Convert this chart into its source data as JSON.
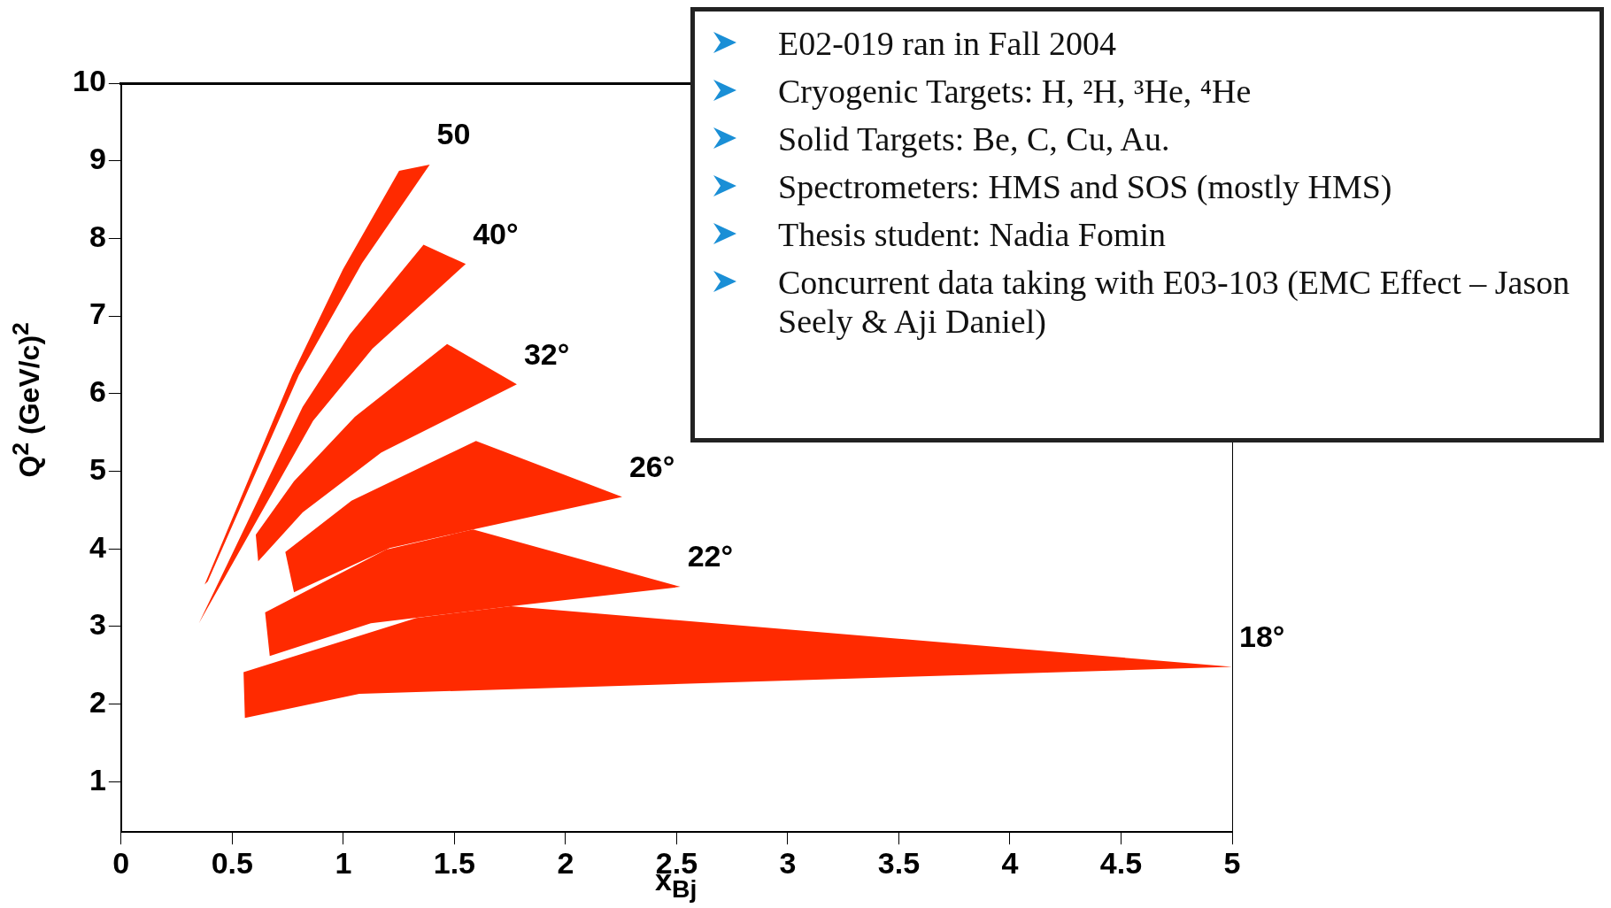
{
  "chart_data": {
    "type": "area",
    "xlabel": "x$_{Bj}$",
    "ylabel": "Q$^{2}$ (GeV/c)$^{2}$",
    "xlim": [
      0,
      5
    ],
    "xticks": [
      0,
      0.5,
      1,
      1.5,
      2,
      2.5,
      3,
      3.5,
      4,
      4.5,
      5
    ],
    "ylim": [
      0.35,
      10
    ],
    "yticks": [
      1,
      2,
      3,
      4,
      5,
      6,
      7,
      8,
      9,
      10
    ],
    "series": [
      {
        "name": "18°",
        "color": "#ff2a00",
        "x": [
          0.551,
          1.329,
          1.754,
          5.0,
          1.072,
          0.557
        ],
        "values": [
          2.41,
          3.11,
          3.26,
          2.48,
          2.13,
          1.82
        ]
      },
      {
        "name": "22°",
        "color": "#ff2a00",
        "x": [
          0.648,
          1.193,
          1.584,
          2.517,
          1.754,
          1.124,
          0.669
        ],
        "values": [
          3.18,
          3.99,
          4.25,
          3.51,
          3.26,
          3.04,
          2.62
        ]
      },
      {
        "name": "26°",
        "color": "#ff2a00",
        "x": [
          0.739,
          1.037,
          1.597,
          2.255,
          1.584,
          1.209,
          0.778
        ],
        "values": [
          3.96,
          4.62,
          5.39,
          4.67,
          4.25,
          4.01,
          3.44
        ]
      },
      {
        "name": "32°",
        "color": "#ff2a00",
        "x": [
          0.606,
          0.778,
          1.052,
          1.467,
          1.781,
          1.17,
          0.817,
          0.617
        ],
        "values": [
          4.18,
          4.87,
          5.7,
          6.64,
          6.12,
          5.24,
          4.47,
          3.84
        ]
      },
      {
        "name": "40°",
        "color": "#ff2a00",
        "x": [
          0.35,
          0.817,
          1.029,
          1.361,
          1.551,
          1.131,
          0.864
        ],
        "values": [
          3.04,
          5.83,
          6.76,
          7.92,
          7.67,
          6.58,
          5.65
        ]
      },
      {
        "name": "50",
        "color": "#ff2a00",
        "x": [
          0.376,
          0.77,
          0.998,
          1.251,
          1.389,
          1.084,
          0.8,
          0.39
        ],
        "values": [
          3.54,
          6.24,
          7.6,
          8.87,
          8.95,
          7.68,
          6.24,
          3.58
        ]
      }
    ],
    "annotations": [
      "E02-019 ran in Fall 2004",
      "Cryogenic Targets: H, ²H, ³He, ⁴He",
      "Solid Targets:  Be, C, Cu, Au.",
      "Spectrometers:  HMS and SOS (mostly HMS)",
      "Thesis student: Nadia Fomin",
      "Concurrent data taking with E03-103 (EMC Effect – Jason Seely & Aji Daniel)"
    ]
  }
}
